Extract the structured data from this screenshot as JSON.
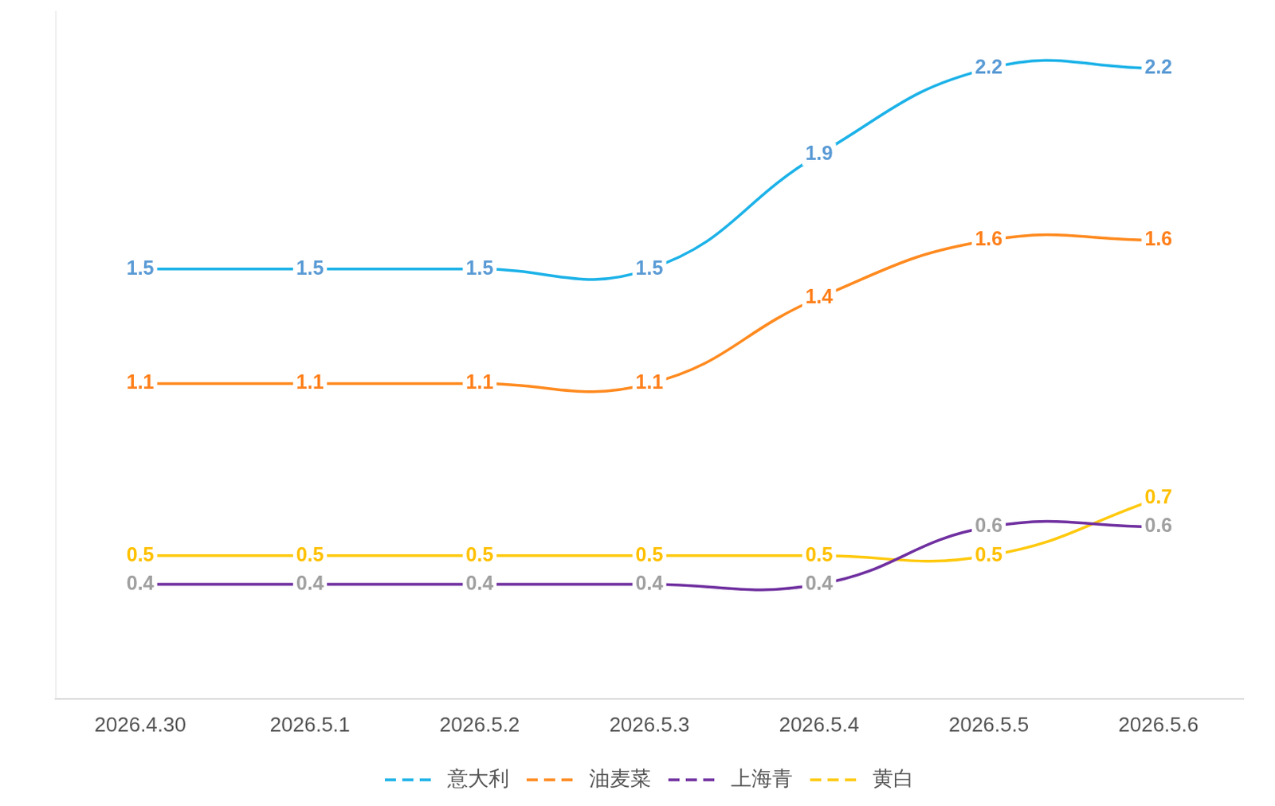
{
  "chart_data": {
    "type": "line",
    "categories": [
      "2026.4.30",
      "2026.5.1",
      "2026.5.2",
      "2026.5.3",
      "2026.5.4",
      "2026.5.5",
      "2026.5.6"
    ],
    "series": [
      {
        "name": "意大利",
        "color": "#1cb2e8",
        "values": [
          1.5,
          1.5,
          1.5,
          1.5,
          1.9,
          2.2,
          2.2
        ]
      },
      {
        "name": "油麦菜",
        "color": "#ff8a1f",
        "values": [
          1.1,
          1.1,
          1.1,
          1.1,
          1.4,
          1.6,
          1.6
        ]
      },
      {
        "name": "上海青",
        "color": "#7030a0",
        "values": [
          0.4,
          0.4,
          0.4,
          0.4,
          0.4,
          0.6,
          0.6
        ]
      },
      {
        "name": "黄白",
        "color": "#ffc90e",
        "values": [
          0.5,
          0.5,
          0.5,
          0.5,
          0.5,
          0.5,
          0.7
        ]
      }
    ],
    "ylim": [
      0,
      2.4
    ],
    "grid": false,
    "legend": "bottom",
    "data_labels": true,
    "tick_labels": "x"
  }
}
